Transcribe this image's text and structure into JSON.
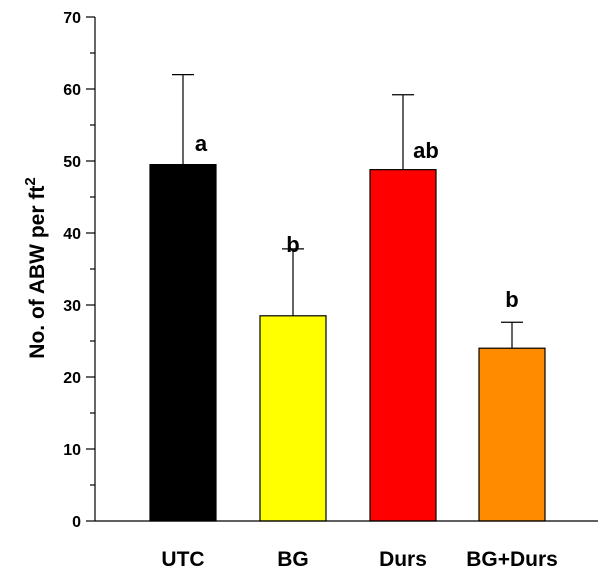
{
  "chart_data": {
    "type": "bar",
    "categories": [
      "UTC",
      "BG",
      "Durs",
      "BG+Durs"
    ],
    "values": [
      49.5,
      28.5,
      48.8,
      24.0
    ],
    "errors": [
      12.5,
      9.3,
      10.4,
      3.6
    ],
    "significance_letters": [
      "a",
      "b",
      "ab",
      "b"
    ],
    "bar_colors": [
      "#000000",
      "#ffff00",
      "#ff0000",
      "#ff8c00"
    ],
    "ylabel": {
      "main": "No. of ABW per ft",
      "superscript": "2"
    },
    "xlabel": "",
    "ylim": [
      0,
      70
    ],
    "yticks_major": [
      0,
      10,
      20,
      30,
      40,
      50,
      60,
      70
    ],
    "yticks_minor": [
      5,
      15,
      25,
      35,
      45,
      55,
      65
    ],
    "ytick_labels": [
      "0",
      "10",
      "20",
      "30",
      "40",
      "50",
      "60",
      "70"
    ],
    "grid": false,
    "legend": "none"
  }
}
